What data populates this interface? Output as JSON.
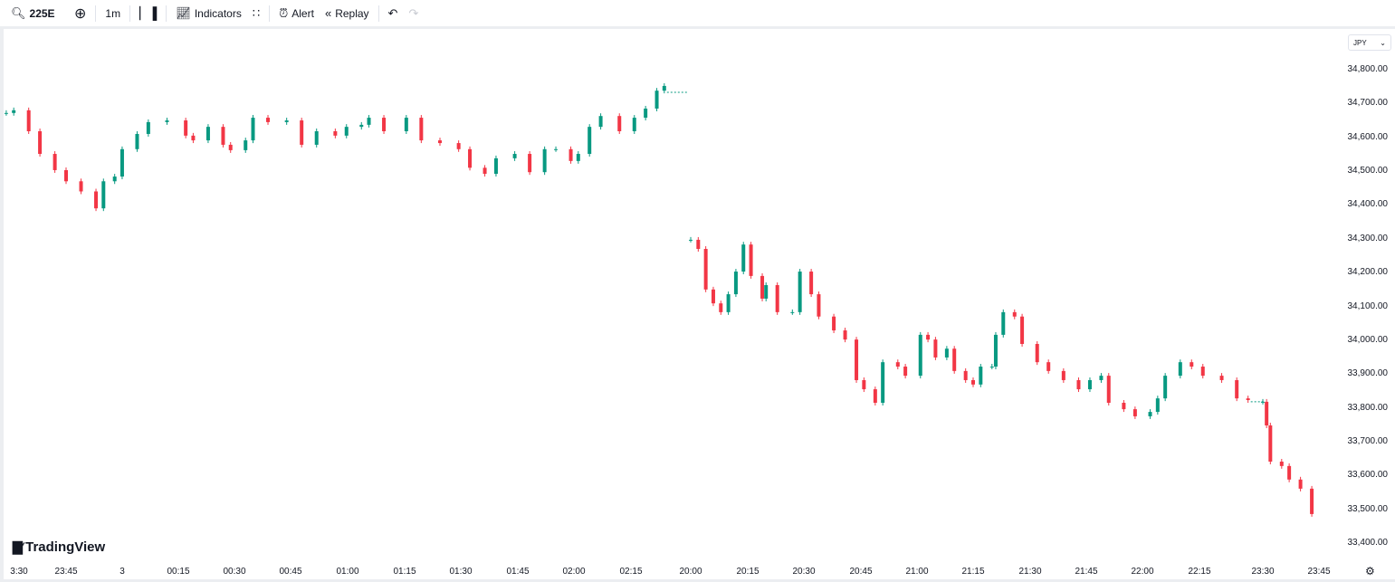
{
  "toolbar": {
    "symbol": "225E",
    "interval": "1m",
    "indicators_label": "Indicators",
    "alert_label": "Alert",
    "replay_label": "Replay",
    "icons": [
      "search-icon",
      "plus-circle-icon",
      "candles-icon",
      "indicators-icon",
      "templates-icon",
      "alarm-icon",
      "replay-icon",
      "undo-icon",
      "redo-icon"
    ]
  },
  "currency": "JPY",
  "brand": "TradingView",
  "colors": {
    "up": "#089981",
    "down": "#f23645"
  },
  "chart_data": {
    "type": "candlestick",
    "yticks": [
      "34,800.00",
      "34,700.00",
      "34,600.00",
      "34,500.00",
      "34,400.00",
      "34,300.00",
      "34,200.00",
      "34,100.00",
      "34,000.00",
      "33,900.00",
      "33,800.00",
      "33,700.00",
      "33,600.00",
      "33,500.00",
      "33,400.00"
    ],
    "ylim": [
      33400,
      34800
    ],
    "xticks": [
      "3:30",
      "23:45",
      "3",
      "00:15",
      "00:30",
      "00:45",
      "01:00",
      "01:15",
      "01:30",
      "01:45",
      "02:00",
      "02:15",
      "20:00",
      "20:15",
      "20:30",
      "20:45",
      "21:00",
      "21:15",
      "21:30",
      "21:45",
      "22:00",
      "22:15",
      "23:30",
      "23:45"
    ],
    "sessions": [
      {
        "last_price": 34733,
        "candles": [
          [
            "23:29",
            34672
          ],
          [
            "23:31",
            34680
          ],
          [
            "23:35",
            34618
          ],
          [
            "23:38",
            34551
          ],
          [
            "23:42",
            34503
          ],
          [
            "23:45",
            34470
          ],
          [
            "23:49",
            34440
          ],
          [
            "23:53",
            34390
          ],
          [
            "23:55",
            34470
          ],
          [
            "23:58",
            34484
          ],
          [
            "00:00",
            34565
          ],
          [
            "00:04",
            34610
          ],
          [
            "00:07",
            34645
          ],
          [
            "00:12",
            34650
          ],
          [
            "00:17",
            34605
          ],
          [
            "00:19",
            34591
          ],
          [
            "00:23",
            34631
          ],
          [
            "00:27",
            34578
          ],
          [
            "00:29",
            34562
          ],
          [
            "00:33",
            34591
          ],
          [
            "00:35",
            34658
          ],
          [
            "00:39",
            34645
          ],
          [
            "00:44",
            34650
          ],
          [
            "00:48",
            34578
          ],
          [
            "00:52",
            34618
          ],
          [
            "00:57",
            34605
          ],
          [
            "01:00",
            34631
          ],
          [
            "01:04",
            34637
          ],
          [
            "01:06",
            34658
          ],
          [
            "01:10",
            34618
          ],
          [
            "01:16",
            34658
          ],
          [
            "01:20",
            34591
          ],
          [
            "01:25",
            34583
          ],
          [
            "01:30",
            34565
          ],
          [
            "01:33",
            34510
          ],
          [
            "01:37",
            34492
          ],
          [
            "01:40",
            34538
          ],
          [
            "01:45",
            34551
          ],
          [
            "01:49",
            34497
          ],
          [
            "01:53",
            34565
          ],
          [
            "01:56",
            34565
          ],
          [
            "02:00",
            34530
          ],
          [
            "02:02",
            34551
          ],
          [
            "02:05",
            34631
          ],
          [
            "02:08",
            34663
          ],
          [
            "02:13",
            34618
          ],
          [
            "02:17",
            34658
          ],
          [
            "02:20",
            34685
          ],
          [
            "02:23",
            34738
          ],
          [
            "02:25",
            34752
          ]
        ]
      },
      {
        "last_price": 33818,
        "candles": [
          [
            "20:00",
            34297
          ],
          [
            "20:02",
            34270
          ],
          [
            "20:04",
            34150
          ],
          [
            "20:06",
            34109
          ],
          [
            "20:08",
            34083
          ],
          [
            "20:10",
            34136
          ],
          [
            "20:12",
            34203
          ],
          [
            "20:14",
            34283
          ],
          [
            "20:16",
            34190
          ],
          [
            "20:19",
            34123
          ],
          [
            "20:20",
            34163
          ],
          [
            "20:23",
            34083
          ],
          [
            "20:27",
            34083
          ],
          [
            "20:29",
            34203
          ],
          [
            "20:32",
            34136
          ],
          [
            "20:34",
            34070
          ],
          [
            "20:38",
            34029
          ],
          [
            "20:41",
            34002
          ],
          [
            "20:44",
            33882
          ],
          [
            "20:46",
            33855
          ],
          [
            "20:49",
            33815
          ],
          [
            "20:51",
            33935
          ],
          [
            "20:55",
            33922
          ],
          [
            "20:57",
            33895
          ],
          [
            "21:01",
            34016
          ],
          [
            "21:03",
            34002
          ],
          [
            "21:05",
            33949
          ],
          [
            "21:08",
            33975
          ],
          [
            "21:10",
            33909
          ],
          [
            "21:13",
            33882
          ],
          [
            "21:15",
            33869
          ],
          [
            "21:17",
            33922
          ],
          [
            "21:20",
            33922
          ],
          [
            "21:21",
            34016
          ],
          [
            "21:23",
            34083
          ],
          [
            "21:26",
            34070
          ],
          [
            "21:28",
            33989
          ],
          [
            "21:32",
            33935
          ],
          [
            "21:35",
            33909
          ],
          [
            "21:39",
            33882
          ],
          [
            "21:43",
            33855
          ],
          [
            "21:46",
            33882
          ],
          [
            "21:49",
            33895
          ],
          [
            "21:51",
            33815
          ],
          [
            "21:55",
            33796
          ],
          [
            "21:58",
            33775
          ],
          [
            "22:02",
            33788
          ],
          [
            "22:04",
            33828
          ],
          [
            "22:06",
            33895
          ],
          [
            "22:10",
            33935
          ],
          [
            "22:13",
            33922
          ],
          [
            "22:16",
            33895
          ],
          [
            "22:21",
            33882
          ],
          [
            "22:25",
            33828
          ],
          [
            "22:28",
            33823
          ]
        ]
      },
      {
        "last_price": null,
        "candles": [
          [
            "23:30",
            33818
          ],
          [
            "23:31",
            33748
          ],
          [
            "23:32",
            33641
          ],
          [
            "23:35",
            33628
          ],
          [
            "23:37",
            33588
          ],
          [
            "23:40",
            33561
          ],
          [
            "23:43",
            33486
          ]
        ]
      }
    ]
  }
}
